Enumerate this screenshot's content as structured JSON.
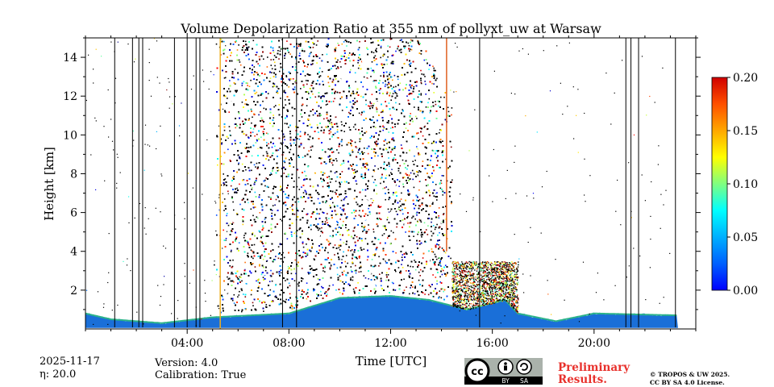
{
  "chart_data": {
    "type": "heatmap",
    "title": "Volume Depolarization Ratio at 355 nm of pollyxt_uw at Warsaw",
    "xlabel": "Time [UTC]",
    "ylabel": "Height [km]",
    "xlim": [
      0,
      24
    ],
    "ylim": [
      0,
      15
    ],
    "x_ticks": [
      4,
      8,
      12,
      16,
      20
    ],
    "x_tick_labels": [
      "04:00",
      "08:00",
      "12:00",
      "16:00",
      "20:00"
    ],
    "y_ticks": [
      2,
      4,
      6,
      8,
      10,
      12,
      14
    ],
    "y_tick_labels": [
      "2",
      "4",
      "6",
      "8",
      "10",
      "12",
      "14"
    ],
    "colorbar": {
      "vmin": 0.0,
      "vmax": 0.2,
      "colormap": "jet",
      "ticks": [
        0.0,
        0.05,
        0.1,
        0.15,
        0.2
      ],
      "tick_labels": [
        "0.00",
        "0.05",
        "0.10",
        "0.15",
        "0.20"
      ]
    },
    "data_end_hour": 23.3,
    "cloud_period_hours": [
      5.6,
      14.2
    ],
    "cloud_top_km": 15,
    "boundary_layer_top_km": [
      {
        "hour": 0.0,
        "top": 0.8
      },
      {
        "hour": 1.0,
        "top": 0.5
      },
      {
        "hour": 3.0,
        "top": 0.3
      },
      {
        "hour": 5.0,
        "top": 0.6
      },
      {
        "hour": 8.0,
        "top": 0.8
      },
      {
        "hour": 10.0,
        "top": 1.6
      },
      {
        "hour": 12.0,
        "top": 1.7
      },
      {
        "hour": 13.5,
        "top": 1.5
      },
      {
        "hour": 15.0,
        "top": 1.0
      },
      {
        "hour": 16.5,
        "top": 1.5
      },
      {
        "hour": 17.0,
        "top": 0.8
      },
      {
        "hour": 18.5,
        "top": 0.4
      },
      {
        "hour": 20.0,
        "top": 0.8
      },
      {
        "hour": 23.3,
        "top": 0.7
      }
    ],
    "instrument_gaps_hours": [
      1.15,
      1.85,
      2.1,
      2.25,
      3.5,
      4.0,
      4.35,
      4.5,
      7.75,
      8.3,
      15.5,
      21.25,
      21.45,
      21.75,
      23.2
    ]
  },
  "footer": {
    "date": "2025-11-17",
    "eta": "η: 20.0",
    "version": "Version: 4.0",
    "calibration": "Calibration: True",
    "preliminary_line1": "Preliminary",
    "preliminary_line2": "Results.",
    "copyright_line1": "© TROPOS & UW 2025.",
    "copyright_line2": "CC BY SA 4.0 License.",
    "license_badge": {
      "by": "BY",
      "sa": "SA"
    }
  }
}
